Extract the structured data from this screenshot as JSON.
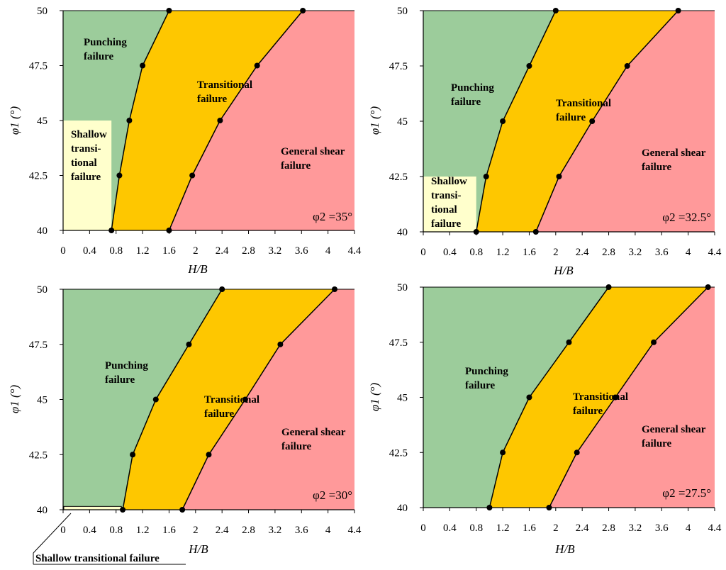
{
  "colors": {
    "punching": "#9ccc9b",
    "shallow": "#ffffcc",
    "transitional": "#fec700",
    "general": "#ff999a",
    "line": "#000000",
    "marker": "#000000"
  },
  "chart_data": [
    {
      "type": "area",
      "xlabel": "H/B",
      "ylabel": "φ1 (°)",
      "xlim": [
        0,
        4.4
      ],
      "ylim": [
        40,
        50
      ],
      "xticks": [
        "0",
        "0.4",
        "0.8",
        "1.2",
        "1.6",
        "2",
        "2.4",
        "2.8",
        "3.2",
        "3.6",
        "4",
        "4.4"
      ],
      "yticks": [
        "40",
        "42.5",
        "45",
        "47.5",
        "50"
      ],
      "annotation": "φ2 =35°",
      "labels": {
        "punching": [
          "Punching",
          "failure"
        ],
        "shallow": [
          "Shallow",
          "transi-",
          "tional",
          "failure"
        ],
        "transitional": [
          "Transitional",
          "failure"
        ],
        "general": [
          "General shear",
          "failure"
        ]
      },
      "shallow_region": {
        "x_max": 0.73,
        "y_max": 45
      },
      "boundary_punching": {
        "x": [
          0.73,
          0.85,
          1.0,
          1.2,
          1.6
        ],
        "y": [
          40,
          42.5,
          45,
          47.5,
          50
        ]
      },
      "boundary_general": {
        "x": [
          1.6,
          1.95,
          2.37,
          2.93,
          3.62
        ],
        "y": [
          40,
          42.5,
          45,
          47.5,
          50
        ]
      }
    },
    {
      "type": "area",
      "xlabel": "H/B",
      "ylabel": "φ1 (°)",
      "xlim": [
        0,
        4.4
      ],
      "ylim": [
        40,
        50
      ],
      "xticks": [
        "0",
        "0.4",
        "0.8",
        "1.2",
        "1.6",
        "2",
        "2.4",
        "2.8",
        "3.2",
        "3.6",
        "4",
        "4.4"
      ],
      "yticks": [
        "40",
        "42.5",
        "45",
        "47.5",
        "50"
      ],
      "annotation": "φ2 =32.5°",
      "labels": {
        "punching": [
          "Punching",
          "failure"
        ],
        "shallow": [
          "Shallow",
          "transi-",
          "tional",
          "failure"
        ],
        "transitional": [
          "Transitional",
          "failure"
        ],
        "general": [
          "General shear",
          "failure"
        ]
      },
      "shallow_region": {
        "x_max": 0.8,
        "y_max": 42.5
      },
      "boundary_punching": {
        "x": [
          0.8,
          0.95,
          1.2,
          1.6,
          2.0
        ],
        "y": [
          40,
          42.5,
          45,
          47.5,
          50
        ]
      },
      "boundary_general": {
        "x": [
          1.7,
          2.05,
          2.55,
          3.08,
          3.85
        ],
        "y": [
          40,
          42.5,
          45,
          47.5,
          50
        ]
      }
    },
    {
      "type": "area",
      "xlabel": "H/B",
      "ylabel": "φ1 (°)",
      "xlim": [
        0,
        4.4
      ],
      "ylim": [
        40,
        50
      ],
      "xticks": [
        "0",
        "0.4",
        "0.8",
        "1.2",
        "1.6",
        "2",
        "2.4",
        "2.8",
        "3.2",
        "3.6",
        "4",
        "4.4"
      ],
      "yticks": [
        "40",
        "42.5",
        "45",
        "47.5",
        "50"
      ],
      "annotation": "φ2 =30°",
      "labels": {
        "punching": [
          "Punching",
          "failure"
        ],
        "transitional": [
          "Transitional",
          "failure"
        ],
        "general": [
          "General shear",
          "failure"
        ]
      },
      "callout": "Shallow transitional failure",
      "shallow_region": {
        "x_max": 0.88,
        "y_max": 40.15
      },
      "boundary_punching": {
        "x": [
          0.9,
          1.05,
          1.4,
          1.9,
          2.4
        ],
        "y": [
          40,
          42.5,
          45,
          47.5,
          50
        ]
      },
      "boundary_general": {
        "x": [
          1.8,
          2.2,
          2.75,
          3.28,
          4.1
        ],
        "y": [
          40,
          42.5,
          45,
          47.5,
          50
        ]
      }
    },
    {
      "type": "area",
      "xlabel": "H/B",
      "ylabel": "φ1 (°)",
      "xlim": [
        0,
        4.4
      ],
      "ylim": [
        40,
        50
      ],
      "xticks": [
        "0",
        "0.4",
        "0.8",
        "1.2",
        "1.6",
        "2",
        "2.4",
        "2.8",
        "3.2",
        "3.6",
        "4",
        "4.4"
      ],
      "yticks": [
        "40",
        "42.5",
        "45",
        "47.5",
        "50"
      ],
      "annotation": "φ2 =27.5°",
      "labels": {
        "punching": [
          "Punching",
          "failure"
        ],
        "transitional": [
          "Transitional",
          "failure"
        ],
        "general": [
          "General shear",
          "failure"
        ]
      },
      "shallow_region": null,
      "boundary_punching": {
        "x": [
          1.0,
          1.2,
          1.6,
          2.2,
          2.8
        ],
        "y": [
          40,
          42.5,
          45,
          47.5,
          50
        ]
      },
      "boundary_general": {
        "x": [
          1.9,
          2.32,
          2.9,
          3.48,
          4.3
        ],
        "y": [
          40,
          42.5,
          45,
          47.5,
          50
        ]
      }
    }
  ]
}
